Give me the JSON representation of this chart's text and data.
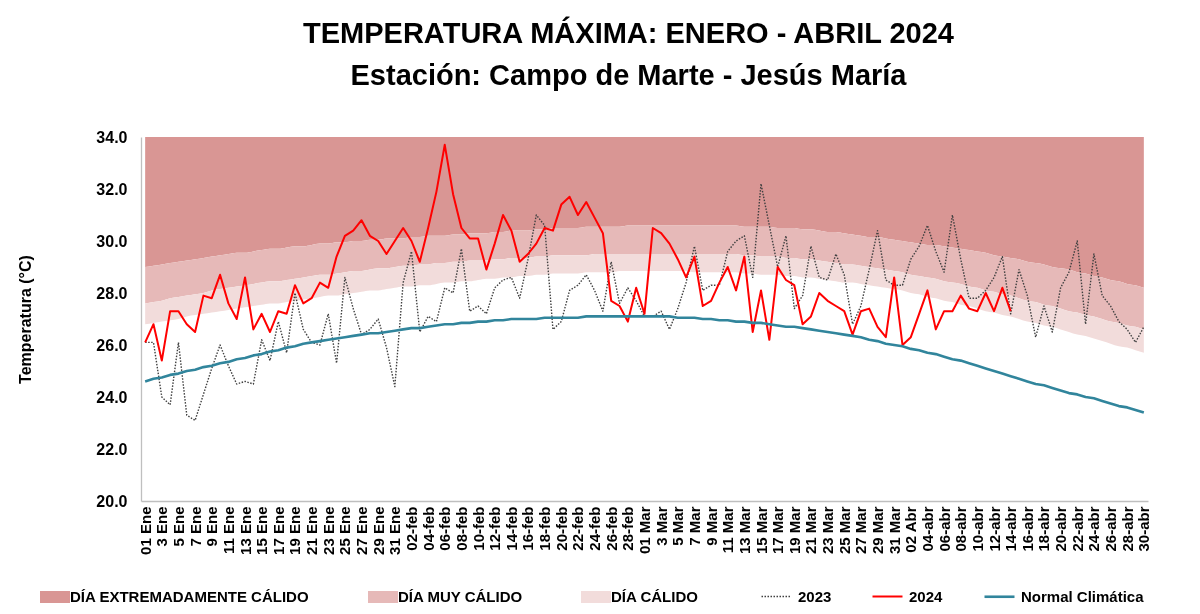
{
  "chart_data": {
    "type": "line",
    "title": "TEMPERATURA MÁXIMA:  ENERO - ABRIL 2024",
    "subtitle": "Estación:  Campo de Marte - Jesús María",
    "ylabel": "Temperatura (°C)",
    "categories": [
      "01 Ene",
      null,
      "3 Ene",
      null,
      "5 Ene",
      null,
      "7 Ene",
      null,
      "9 Ene",
      null,
      "11 Ene",
      null,
      "13 Ene",
      null,
      "15 Ene",
      null,
      "17 Ene",
      null,
      "19 Ene",
      null,
      "21 Ene",
      null,
      "23 Ene",
      null,
      "25 Ene",
      null,
      "27 Ene",
      null,
      "29 Ene",
      null,
      "31 Ene",
      null,
      "02-feb",
      null,
      "04-feb",
      null,
      "06-feb",
      null,
      "08-feb",
      null,
      "10-feb",
      null,
      "12-feb",
      null,
      "14-feb",
      null,
      "16-feb",
      null,
      "18-feb",
      null,
      "20-feb",
      null,
      "22-feb",
      null,
      "24-feb",
      null,
      "26-feb",
      null,
      "28-feb",
      null,
      "01 Mar",
      null,
      "3 Mar",
      null,
      "5 Mar",
      null,
      "7 Mar",
      null,
      "9 Mar",
      null,
      "11 Mar",
      null,
      "13 Mar",
      null,
      "15 Mar",
      null,
      "17 Mar",
      null,
      "19 Mar",
      null,
      "21 Mar",
      null,
      "23 Mar",
      null,
      "25 Mar",
      null,
      "27 Mar",
      null,
      "29 Mar",
      null,
      "31 Mar",
      null,
      "02 Abr",
      null,
      "04-abr",
      null,
      "06-abr",
      null,
      "08-abr",
      null,
      "10-abr",
      null,
      "12-abr",
      null,
      "14-abr",
      null,
      "16-abr",
      null,
      "18-abr",
      null,
      "20-abr",
      null,
      "22-abr",
      null,
      "24-abr",
      null,
      "26-abr",
      null,
      "28-abr",
      null,
      "30-abr"
    ],
    "ylim": [
      20,
      34
    ],
    "yticks": [
      {
        "value": 20,
        "label": "20.0"
      },
      {
        "value": 22,
        "label": "22.0"
      },
      {
        "value": 24,
        "label": "24.0"
      },
      {
        "value": 26,
        "label": "26.0"
      },
      {
        "value": 28,
        "label": "28.0"
      },
      {
        "value": 30,
        "label": "30.0"
      },
      {
        "value": 32,
        "label": "32.0"
      },
      {
        "value": 34,
        "label": "34.0"
      }
    ],
    "grid": false,
    "legend": "bottom",
    "series": [
      {
        "name": "DÍA EXTREMADAMENTE CÁLIDO",
        "type": "line",
        "color": "#d99694",
        "values": [
          null,
          null,
          null,
          null,
          null,
          null,
          null,
          null,
          null,
          null,
          null,
          null,
          null,
          null,
          null,
          null,
          null,
          null,
          null,
          null,
          null,
          null,
          null,
          null,
          null,
          null,
          null,
          null,
          null,
          null,
          null,
          null,
          null,
          null,
          null,
          null,
          null,
          null,
          null,
          null,
          null,
          null,
          null,
          null,
          null,
          null,
          null,
          null,
          null,
          null,
          null,
          null,
          null,
          null,
          null,
          null,
          null,
          null,
          null,
          null,
          null,
          null,
          null,
          null,
          null,
          null,
          null,
          null,
          null,
          null,
          null,
          null,
          null,
          null,
          null,
          null,
          null,
          null,
          null,
          null,
          null,
          null,
          null,
          null,
          null,
          null,
          null,
          null,
          null,
          null,
          null,
          null,
          null,
          null,
          null,
          null,
          null,
          null,
          null,
          null,
          null,
          null,
          null,
          null,
          null,
          null,
          null,
          null,
          null,
          null,
          null,
          null,
          null,
          null,
          null,
          null,
          null,
          null,
          null,
          null,
          null
        ],
        "lower": [
          29.0,
          29.05,
          29.1,
          29.15,
          29.2,
          29.25,
          29.3,
          29.35,
          29.4,
          29.45,
          29.5,
          29.55,
          29.55,
          29.6,
          29.65,
          29.7,
          29.7,
          29.75,
          29.8,
          29.8,
          29.85,
          29.9,
          29.9,
          29.95,
          29.95,
          30.0,
          30.0,
          30.05,
          30.05,
          30.1,
          30.1,
          30.1,
          30.15,
          30.15,
          30.2,
          30.2,
          30.2,
          30.25,
          30.25,
          30.3,
          30.3,
          30.3,
          30.35,
          30.35,
          30.4,
          30.4,
          30.4,
          30.45,
          30.45,
          30.5,
          30.5,
          30.5,
          30.5,
          30.55,
          30.55,
          30.55,
          30.55,
          30.55,
          30.6,
          30.6,
          30.6,
          30.6,
          30.6,
          30.6,
          30.6,
          30.6,
          30.6,
          30.6,
          30.6,
          30.6,
          30.6,
          30.6,
          30.55,
          30.55,
          30.55,
          30.55,
          30.5,
          30.5,
          30.5,
          30.45,
          30.45,
          30.4,
          30.35,
          30.35,
          30.3,
          30.25,
          30.2,
          30.15,
          30.15,
          30.1,
          30.05,
          30.0,
          29.95,
          29.9,
          29.85,
          29.85,
          29.8,
          29.75,
          29.7,
          29.65,
          29.6,
          29.55,
          29.45,
          29.4,
          29.35,
          29.3,
          29.2,
          29.15,
          29.1,
          29.0,
          28.95,
          28.9,
          28.8,
          28.75,
          28.65,
          28.6,
          28.5,
          28.45,
          28.35,
          28.3,
          28.2
        ],
        "upper": [
          34,
          34,
          34,
          34,
          34,
          34,
          34,
          34,
          34,
          34,
          34,
          34,
          34,
          34,
          34,
          34,
          34,
          34,
          34,
          34,
          34,
          34,
          34,
          34,
          34,
          34,
          34,
          34,
          34,
          34,
          34,
          34,
          34,
          34,
          34,
          34,
          34,
          34,
          34,
          34,
          34,
          34,
          34,
          34,
          34,
          34,
          34,
          34,
          34,
          34,
          34,
          34,
          34,
          34,
          34,
          34,
          34,
          34,
          34,
          34,
          34,
          34,
          34,
          34,
          34,
          34,
          34,
          34,
          34,
          34,
          34,
          34,
          34,
          34,
          34,
          34,
          34,
          34,
          34,
          34,
          34,
          34,
          34,
          34,
          34,
          34,
          34,
          34,
          34,
          34,
          34,
          34,
          34,
          34,
          34,
          34,
          34,
          34,
          34,
          34,
          34,
          34,
          34,
          34,
          34,
          34,
          34,
          34,
          34,
          34,
          34,
          34,
          34,
          34,
          34,
          34,
          34,
          34,
          34,
          34,
          34
        ]
      },
      {
        "name": "DÍA MUY CÁLIDO",
        "type": "line",
        "color": "#e6b9b8",
        "values": [
          null,
          null,
          null,
          null,
          null,
          null,
          null,
          null,
          null,
          null,
          null,
          null,
          null,
          null,
          null,
          null,
          null,
          null,
          null,
          null,
          null,
          null,
          null,
          null,
          null,
          null,
          null,
          null,
          null,
          null,
          null,
          null,
          null,
          null,
          null,
          null,
          null,
          null,
          null,
          null,
          null,
          null,
          null,
          null,
          null,
          null,
          null,
          null,
          null,
          null,
          null,
          null,
          null,
          null,
          null,
          null,
          null,
          null,
          null,
          null,
          null,
          null,
          null,
          null,
          null,
          null,
          null,
          null,
          null,
          null,
          null,
          null,
          null,
          null,
          null,
          null,
          null,
          null,
          null,
          null,
          null,
          null,
          null,
          null,
          null,
          null,
          null,
          null,
          null,
          null,
          null,
          null,
          null,
          null,
          null,
          null,
          null,
          null,
          null,
          null,
          null,
          null,
          null,
          null,
          null,
          null,
          null,
          null,
          null,
          null,
          null,
          null,
          null,
          null,
          null,
          null,
          null,
          null,
          null,
          null,
          null
        ],
        "lower": [
          27.6,
          27.65,
          27.7,
          27.8,
          27.85,
          27.9,
          27.95,
          28.0,
          28.1,
          28.15,
          28.2,
          28.25,
          28.3,
          28.35,
          28.4,
          28.45,
          28.45,
          28.5,
          28.55,
          28.6,
          28.65,
          28.7,
          28.7,
          28.75,
          28.8,
          28.85,
          28.85,
          28.9,
          28.95,
          28.95,
          29.0,
          29.05,
          29.05,
          29.1,
          29.1,
          29.15,
          29.15,
          29.2,
          29.2,
          29.25,
          29.25,
          29.25,
          29.3,
          29.3,
          29.35,
          29.35,
          29.35,
          29.4,
          29.4,
          29.45,
          29.45,
          29.45,
          29.45,
          29.45,
          29.5,
          29.5,
          29.5,
          29.5,
          29.5,
          29.5,
          29.5,
          29.5,
          29.5,
          29.5,
          29.5,
          29.5,
          29.5,
          29.5,
          29.5,
          29.5,
          29.5,
          29.5,
          29.45,
          29.45,
          29.4,
          29.4,
          29.4,
          29.35,
          29.35,
          29.3,
          29.3,
          29.25,
          29.2,
          29.15,
          29.1,
          29.1,
          29.05,
          29.0,
          28.95,
          28.9,
          28.85,
          28.8,
          28.7,
          28.65,
          28.6,
          28.55,
          28.45,
          28.4,
          28.35,
          28.25,
          28.2,
          28.1,
          28.05,
          27.95,
          27.9,
          27.8,
          27.7,
          27.65,
          27.55,
          27.5,
          27.4,
          27.3,
          27.25,
          27.15,
          27.1,
          27.0,
          26.9,
          26.85,
          26.75,
          26.7,
          26.6
        ],
        "upper": [
          29.0,
          29.05,
          29.1,
          29.15,
          29.2,
          29.25,
          29.3,
          29.35,
          29.4,
          29.45,
          29.5,
          29.55,
          29.55,
          29.6,
          29.65,
          29.7,
          29.7,
          29.75,
          29.8,
          29.8,
          29.85,
          29.9,
          29.9,
          29.95,
          29.95,
          30.0,
          30.0,
          30.05,
          30.05,
          30.1,
          30.1,
          30.1,
          30.15,
          30.15,
          30.2,
          30.2,
          30.2,
          30.25,
          30.25,
          30.3,
          30.3,
          30.3,
          30.35,
          30.35,
          30.4,
          30.4,
          30.4,
          30.45,
          30.45,
          30.5,
          30.5,
          30.5,
          30.5,
          30.55,
          30.55,
          30.55,
          30.55,
          30.55,
          30.6,
          30.6,
          30.6,
          30.6,
          30.6,
          30.6,
          30.6,
          30.6,
          30.6,
          30.6,
          30.6,
          30.6,
          30.6,
          30.6,
          30.55,
          30.55,
          30.55,
          30.55,
          30.5,
          30.5,
          30.5,
          30.45,
          30.45,
          30.4,
          30.35,
          30.35,
          30.3,
          30.25,
          30.2,
          30.15,
          30.15,
          30.1,
          30.05,
          30.0,
          29.95,
          29.9,
          29.85,
          29.85,
          29.8,
          29.75,
          29.7,
          29.65,
          29.6,
          29.55,
          29.45,
          29.4,
          29.35,
          29.3,
          29.2,
          29.15,
          29.1,
          29.0,
          28.95,
          28.9,
          28.8,
          28.75,
          28.65,
          28.6,
          28.5,
          28.45,
          28.35,
          28.3,
          28.2
        ]
      },
      {
        "name": "DÍA CÁLIDO",
        "type": "line",
        "color": "#f2dcdb",
        "values": [
          null,
          null,
          null,
          null,
          null,
          null,
          null,
          null,
          null,
          null,
          null,
          null,
          null,
          null,
          null,
          null,
          null,
          null,
          null,
          null,
          null,
          null,
          null,
          null,
          null,
          null,
          null,
          null,
          null,
          null,
          null,
          null,
          null,
          null,
          null,
          null,
          null,
          null,
          null,
          null,
          null,
          null,
          null,
          null,
          null,
          null,
          null,
          null,
          null,
          null,
          null,
          null,
          null,
          null,
          null,
          null,
          null,
          null,
          null,
          null,
          null,
          null,
          null,
          null,
          null,
          null,
          null,
          null,
          null,
          null,
          null,
          null,
          null,
          null,
          null,
          null,
          null,
          null,
          null,
          null,
          null,
          null,
          null,
          null,
          null,
          null,
          null,
          null,
          null,
          null,
          null,
          null,
          null,
          null,
          null,
          null,
          null,
          null,
          null,
          null,
          null,
          null,
          null,
          null,
          null,
          null,
          null,
          null,
          null,
          null,
          null,
          null,
          null,
          null,
          null,
          null,
          null,
          null,
          null,
          null,
          null
        ],
        "lower": [
          26.8,
          26.85,
          26.9,
          26.95,
          27.0,
          27.1,
          27.15,
          27.2,
          27.25,
          27.3,
          27.35,
          27.4,
          27.45,
          27.5,
          27.55,
          27.6,
          27.6,
          27.65,
          27.7,
          27.75,
          27.8,
          27.85,
          27.9,
          27.9,
          27.95,
          28.0,
          28.05,
          28.1,
          28.1,
          28.15,
          28.2,
          28.25,
          28.25,
          28.3,
          28.3,
          28.35,
          28.4,
          28.4,
          28.45,
          28.45,
          28.5,
          28.55,
          28.55,
          28.6,
          28.6,
          28.65,
          28.65,
          28.7,
          28.7,
          28.75,
          28.75,
          28.75,
          28.75,
          28.8,
          28.8,
          28.8,
          28.8,
          28.85,
          28.85,
          28.85,
          28.85,
          28.85,
          28.85,
          28.85,
          28.85,
          28.85,
          28.8,
          28.8,
          28.8,
          28.8,
          28.8,
          28.8,
          28.75,
          28.75,
          28.7,
          28.7,
          28.7,
          28.65,
          28.65,
          28.6,
          28.6,
          28.55,
          28.5,
          28.45,
          28.4,
          28.4,
          28.35,
          28.3,
          28.25,
          28.2,
          28.15,
          28.1,
          28.0,
          27.95,
          27.85,
          27.8,
          27.7,
          27.65,
          27.55,
          27.5,
          27.4,
          27.3,
          27.25,
          27.15,
          27.1,
          27.0,
          26.9,
          26.85,
          26.75,
          26.7,
          26.6,
          26.5,
          26.4,
          26.35,
          26.25,
          26.15,
          26.05,
          25.95,
          25.9,
          25.8,
          25.7
        ],
        "upper": [
          27.6,
          27.65,
          27.7,
          27.8,
          27.85,
          27.9,
          27.95,
          28.0,
          28.1,
          28.15,
          28.2,
          28.25,
          28.3,
          28.35,
          28.4,
          28.45,
          28.45,
          28.5,
          28.55,
          28.6,
          28.65,
          28.7,
          28.7,
          28.75,
          28.8,
          28.85,
          28.85,
          28.9,
          28.95,
          28.95,
          29.0,
          29.05,
          29.05,
          29.1,
          29.1,
          29.15,
          29.15,
          29.2,
          29.2,
          29.25,
          29.25,
          29.25,
          29.3,
          29.3,
          29.35,
          29.35,
          29.35,
          29.4,
          29.4,
          29.45,
          29.45,
          29.45,
          29.45,
          29.45,
          29.5,
          29.5,
          29.5,
          29.5,
          29.5,
          29.5,
          29.5,
          29.5,
          29.5,
          29.5,
          29.5,
          29.5,
          29.5,
          29.5,
          29.5,
          29.5,
          29.5,
          29.5,
          29.45,
          29.45,
          29.4,
          29.4,
          29.4,
          29.35,
          29.35,
          29.3,
          29.3,
          29.25,
          29.2,
          29.15,
          29.1,
          29.1,
          29.05,
          29.0,
          28.95,
          28.9,
          28.85,
          28.8,
          28.7,
          28.65,
          28.6,
          28.55,
          28.45,
          28.4,
          28.35,
          28.25,
          28.2,
          28.1,
          28.05,
          27.95,
          27.9,
          27.8,
          27.7,
          27.65,
          27.55,
          27.5,
          27.4,
          27.3,
          27.25,
          27.15,
          27.1,
          27.0,
          26.9,
          26.85,
          26.75,
          26.7,
          26.6
        ]
      },
      {
        "name": "2023",
        "type": "line",
        "color": "#404040",
        "line_style": "dotted",
        "values": [
          26.1,
          26.1,
          24.0,
          23.7,
          26.1,
          23.3,
          23.1,
          24.1,
          25.1,
          26.0,
          25.2,
          24.5,
          24.6,
          24.5,
          26.2,
          25.4,
          26.9,
          25.7,
          28.0,
          26.6,
          26.1,
          26.0,
          27.2,
          25.3,
          28.6,
          27.4,
          26.4,
          26.6,
          27.0,
          25.9,
          24.4,
          28.4,
          29.6,
          26.5,
          27.1,
          26.9,
          28.2,
          28.0,
          29.7,
          27.3,
          27.5,
          27.2,
          28.2,
          28.5,
          28.6,
          27.8,
          29.3,
          31.0,
          30.6,
          26.6,
          26.9,
          28.1,
          28.3,
          28.7,
          28.1,
          27.3,
          29.2,
          27.6,
          28.2,
          27.7,
          27.1,
          27.1,
          27.3,
          26.6,
          27.4,
          28.4,
          29.8,
          28.1,
          28.3,
          28.3,
          29.6,
          30.0,
          30.2,
          28.6,
          32.2,
          30.6,
          29.0,
          30.2,
          27.4,
          27.9,
          29.8,
          28.6,
          28.5,
          29.5,
          28.7,
          26.8,
          27.5,
          28.9,
          30.4,
          28.5,
          28.3,
          28.3,
          29.3,
          29.8,
          30.6,
          29.6,
          28.8,
          31.0,
          29.3,
          27.8,
          27.8,
          28.1,
          28.6,
          29.4,
          27.2,
          28.9,
          27.9,
          26.3,
          27.5,
          26.5,
          28.2,
          28.8,
          30.0,
          26.8,
          29.5,
          27.9,
          27.5,
          26.9,
          26.6,
          26.1,
          26.7
        ]
      },
      {
        "name": "2024",
        "type": "line",
        "color": "#ff0000",
        "line_style": "solid",
        "values": [
          26.1,
          26.8,
          25.4,
          27.3,
          27.3,
          26.8,
          26.5,
          27.9,
          27.8,
          28.7,
          27.6,
          27.0,
          28.6,
          26.6,
          27.2,
          26.5,
          27.3,
          27.2,
          28.3,
          27.6,
          27.8,
          28.4,
          28.2,
          29.4,
          30.2,
          30.4,
          30.8,
          30.2,
          30.0,
          29.5,
          30.0,
          30.5,
          30.0,
          29.2,
          30.5,
          31.9,
          33.7,
          31.8,
          30.5,
          30.1,
          30.1,
          28.9,
          29.9,
          31.0,
          30.4,
          29.2,
          29.5,
          29.9,
          30.5,
          30.4,
          31.4,
          31.7,
          31.0,
          31.5,
          30.9,
          30.3,
          27.7,
          27.5,
          26.9,
          28.2,
          27.2,
          30.5,
          30.3,
          29.9,
          29.3,
          28.6,
          29.4,
          27.5,
          27.7,
          28.4,
          29.0,
          28.1,
          29.4,
          26.5,
          28.1,
          26.2,
          29.0,
          28.5,
          28.3,
          26.8,
          27.1,
          28.0,
          27.7,
          27.5,
          27.3,
          26.4,
          27.3,
          27.4,
          26.7,
          26.3,
          28.6,
          26.0,
          26.3,
          27.2,
          28.1,
          26.6,
          27.3,
          27.3,
          27.9,
          27.4,
          27.3,
          28.0,
          27.3,
          28.2,
          27.3,
          null,
          null,
          null,
          null,
          null,
          null,
          null,
          null,
          null,
          null,
          null,
          null,
          null,
          null,
          null,
          null
        ]
      },
      {
        "name": "Normal Climática",
        "type": "line",
        "color": "#31859c",
        "line_style": "solid",
        "values": [
          24.6,
          24.7,
          24.75,
          24.85,
          24.9,
          25.0,
          25.05,
          25.15,
          25.2,
          25.3,
          25.35,
          25.45,
          25.5,
          25.6,
          25.65,
          25.75,
          25.8,
          25.9,
          25.95,
          26.05,
          26.1,
          26.15,
          26.2,
          26.25,
          26.3,
          26.35,
          26.4,
          26.45,
          26.45,
          26.5,
          26.55,
          26.6,
          26.65,
          26.65,
          26.7,
          26.75,
          26.8,
          26.8,
          26.85,
          26.85,
          26.9,
          26.9,
          26.95,
          26.95,
          27.0,
          27.0,
          27.0,
          27.0,
          27.05,
          27.05,
          27.05,
          27.05,
          27.05,
          27.1,
          27.1,
          27.1,
          27.1,
          27.1,
          27.1,
          27.1,
          27.1,
          27.1,
          27.1,
          27.1,
          27.05,
          27.05,
          27.05,
          27.0,
          27.0,
          26.95,
          26.95,
          26.9,
          26.9,
          26.85,
          26.85,
          26.8,
          26.75,
          26.7,
          26.7,
          26.65,
          26.6,
          26.55,
          26.5,
          26.45,
          26.4,
          26.35,
          26.3,
          26.2,
          26.15,
          26.05,
          26.0,
          25.95,
          25.85,
          25.8,
          25.7,
          25.65,
          25.55,
          25.45,
          25.4,
          25.3,
          25.2,
          25.1,
          25.0,
          24.9,
          24.8,
          24.7,
          24.6,
          24.5,
          24.45,
          24.35,
          24.25,
          24.15,
          24.1,
          24.0,
          23.95,
          23.85,
          23.75,
          23.65,
          23.6,
          23.5,
          23.4
        ]
      }
    ]
  }
}
